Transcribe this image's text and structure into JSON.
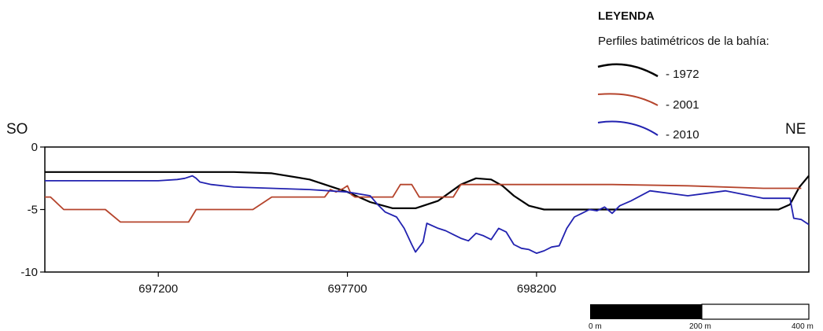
{
  "legend": {
    "title": "LEYENDA",
    "subtitle": "Perfiles batimétricos de la bahía:",
    "items": [
      {
        "label": "- 1972",
        "color": "#000000"
      },
      {
        "label": "- 2001",
        "color": "#b5442c"
      },
      {
        "label": "- 2010",
        "color": "#2222b0"
      }
    ]
  },
  "directions": {
    "left": "SO",
    "right": "NE"
  },
  "scale_bar": {
    "labels": [
      "0 m",
      "200 m",
      "400 m"
    ]
  },
  "chart_data": {
    "type": "line",
    "xlim": [
      696900,
      698920
    ],
    "ylim": [
      -10,
      0
    ],
    "x_ticks": [
      697200,
      697700,
      698200
    ],
    "x_tick_labels": [
      "697200",
      "697700",
      "698200"
    ],
    "y_ticks": [
      0,
      -5,
      -10
    ],
    "y_tick_labels": [
      "0",
      "-5",
      "-10"
    ],
    "grid": false,
    "legend_position": "top-right",
    "series": [
      {
        "name": "- 1972",
        "color": "#000000",
        "x": [
          696900,
          697000,
          697200,
          697400,
          697500,
          697600,
          697700,
          697760,
          697820,
          697880,
          697940,
          698000,
          698040,
          698080,
          698110,
          698140,
          698180,
          698220,
          698300,
          698500,
          698700,
          698840,
          698870,
          698895,
          698920
        ],
        "y": [
          -2.0,
          -2.0,
          -2.0,
          -2.0,
          -2.1,
          -2.6,
          -3.6,
          -4.4,
          -4.9,
          -4.9,
          -4.3,
          -3.0,
          -2.5,
          -2.6,
          -3.1,
          -3.9,
          -4.7,
          -5.0,
          -5.0,
          -5.0,
          -5.0,
          -5.0,
          -4.6,
          -3.2,
          -2.3
        ]
      },
      {
        "name": "- 2001",
        "color": "#b5442c",
        "x": [
          696900,
          696915,
          696950,
          697020,
          697060,
          697100,
          697200,
          697250,
          697280,
          697300,
          697400,
          697450,
          697500,
          697550,
          697600,
          697640,
          697655,
          697670,
          697690,
          697700,
          697710,
          697720,
          697740,
          697750,
          697800,
          697820,
          697830,
          697840,
          697850,
          697870,
          697890,
          697900,
          697950,
          697980,
          698000,
          698010,
          698030,
          698050,
          698200,
          698400,
          698600,
          698800,
          698900
        ],
        "y": [
          -4.0,
          -4.0,
          -5.0,
          -5.0,
          -5.0,
          -6.0,
          -6.0,
          -6.0,
          -6.0,
          -5.0,
          -5.0,
          -5.0,
          -4.0,
          -4.0,
          -4.0,
          -4.0,
          -3.4,
          -3.6,
          -3.3,
          -3.1,
          -3.8,
          -4.0,
          -4.0,
          -4.0,
          -4.0,
          -4.0,
          -3.5,
          -3.0,
          -3.0,
          -3.0,
          -4.0,
          -4.0,
          -4.0,
          -4.0,
          -3.0,
          -3.0,
          -3.0,
          -3.0,
          -3.0,
          -3.0,
          -3.1,
          -3.3,
          -3.3
        ]
      },
      {
        "name": "- 2010",
        "color": "#2222b0",
        "x": [
          696900,
          697000,
          697100,
          697200,
          697250,
          697270,
          697290,
          697300,
          697310,
          697340,
          697400,
          697500,
          697600,
          697700,
          697760,
          697780,
          697800,
          697830,
          697850,
          697870,
          697880,
          697900,
          697910,
          697940,
          697960,
          697980,
          698000,
          698020,
          698040,
          698060,
          698080,
          698100,
          698120,
          698140,
          698160,
          698180,
          698200,
          698220,
          698240,
          698260,
          698280,
          698300,
          698320,
          698340,
          698360,
          698380,
          698400,
          698420,
          698450,
          698500,
          698600,
          698700,
          698800,
          698850,
          698870,
          698880,
          698900,
          698920
        ],
        "y": [
          -2.7,
          -2.7,
          -2.7,
          -2.7,
          -2.6,
          -2.5,
          -2.3,
          -2.5,
          -2.8,
          -3.0,
          -3.2,
          -3.3,
          -3.4,
          -3.6,
          -3.9,
          -4.6,
          -5.2,
          -5.6,
          -6.5,
          -7.8,
          -8.4,
          -7.6,
          -6.1,
          -6.5,
          -6.7,
          -7.0,
          -7.3,
          -7.5,
          -6.9,
          -7.1,
          -7.4,
          -6.5,
          -6.8,
          -7.8,
          -8.1,
          -8.2,
          -8.5,
          -8.3,
          -8.0,
          -7.9,
          -6.5,
          -5.6,
          -5.3,
          -5.0,
          -5.1,
          -4.8,
          -5.3,
          -4.7,
          -4.3,
          -3.5,
          -3.9,
          -3.5,
          -4.1,
          -4.1,
          -4.1,
          -5.7,
          -5.8,
          -6.2
        ]
      }
    ]
  }
}
